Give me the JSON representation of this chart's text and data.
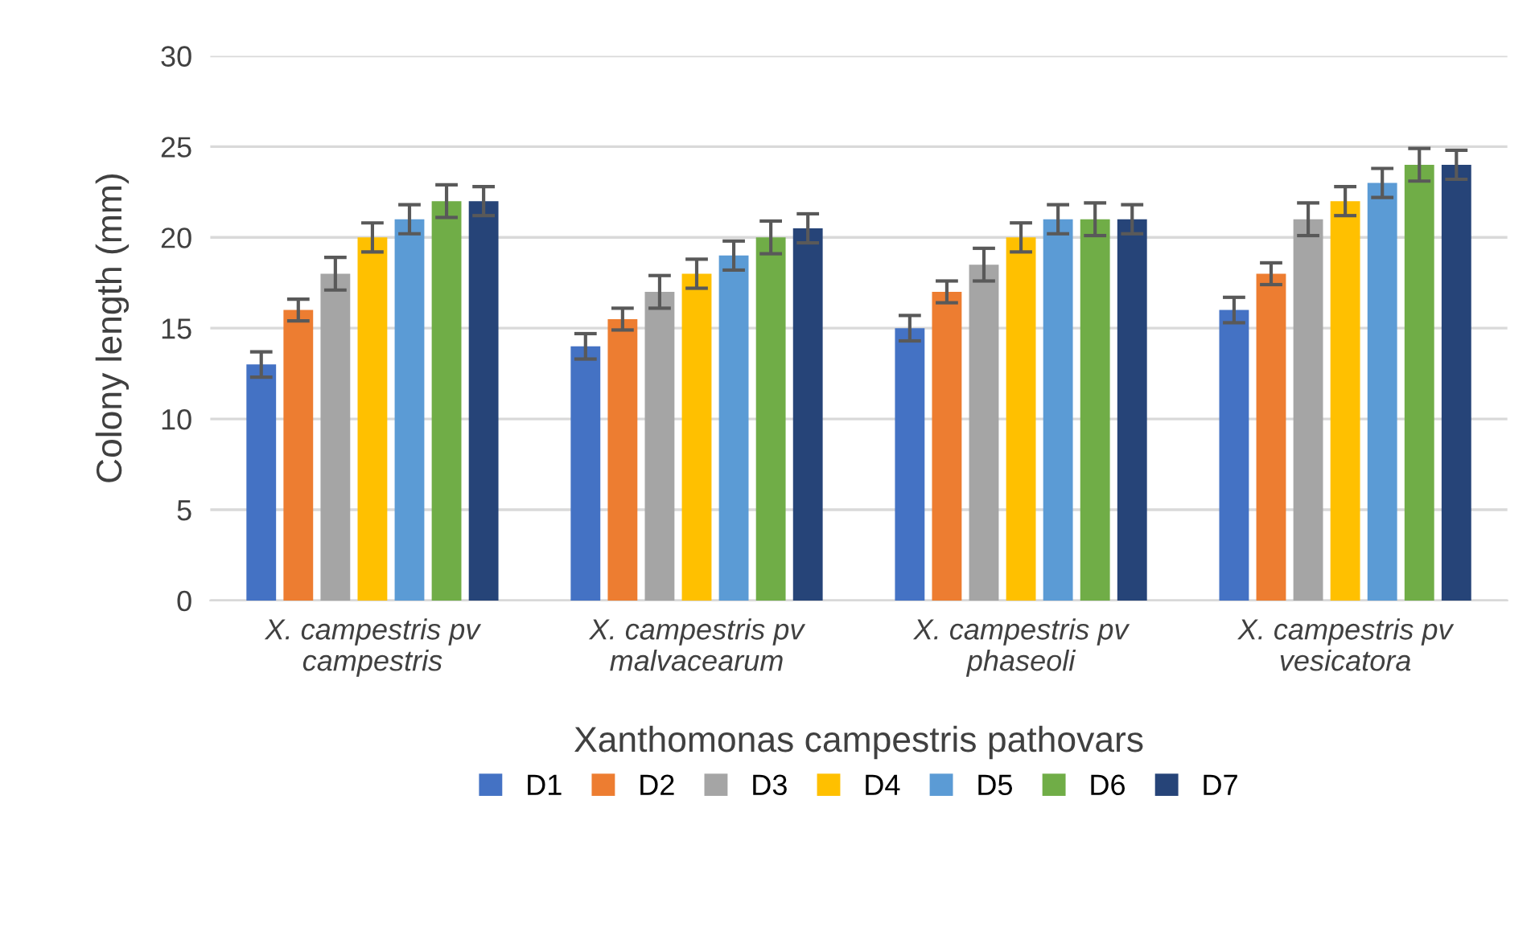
{
  "chart_data": {
    "type": "bar",
    "xlabel": "Xanthomonas campestris pathovars",
    "ylabel": "Colony length (mm)",
    "categories": [
      "X. campestris pv\ncampestris",
      "X. campestris pv\nmalvacearum",
      "X. campestris pv\nphaseoli",
      "X. campestris pv\nvesicatora"
    ],
    "series": [
      {
        "name": "D1",
        "color": "#4472c4",
        "values": [
          13,
          14,
          15,
          16
        ],
        "errors": [
          0.7,
          0.7,
          0.7,
          0.7
        ]
      },
      {
        "name": "D2",
        "color": "#ed7d31",
        "values": [
          16,
          15.5,
          17,
          18
        ],
        "errors": [
          0.6,
          0.6,
          0.6,
          0.6
        ]
      },
      {
        "name": "D3",
        "color": "#a5a5a5",
        "values": [
          18,
          17,
          18.5,
          21
        ],
        "errors": [
          0.9,
          0.9,
          0.9,
          0.9
        ]
      },
      {
        "name": "D4",
        "color": "#ffc000",
        "values": [
          20,
          18,
          20,
          22
        ],
        "errors": [
          0.8,
          0.8,
          0.8,
          0.8
        ]
      },
      {
        "name": "D5",
        "color": "#5b9bd5",
        "values": [
          21,
          19,
          21,
          23
        ],
        "errors": [
          0.8,
          0.8,
          0.8,
          0.8
        ]
      },
      {
        "name": "D6",
        "color": "#70ad47",
        "values": [
          22,
          20,
          21,
          24
        ],
        "errors": [
          0.9,
          0.9,
          0.9,
          0.9
        ]
      },
      {
        "name": "D7",
        "color": "#264478",
        "values": [
          22,
          20.5,
          21,
          24
        ],
        "errors": [
          0.8,
          0.8,
          0.8,
          0.8
        ]
      }
    ],
    "ylim": [
      0,
      30
    ],
    "yticks": [
      0,
      5,
      10,
      15,
      20,
      25,
      30
    ],
    "grid": "y",
    "legend": "bottom"
  }
}
